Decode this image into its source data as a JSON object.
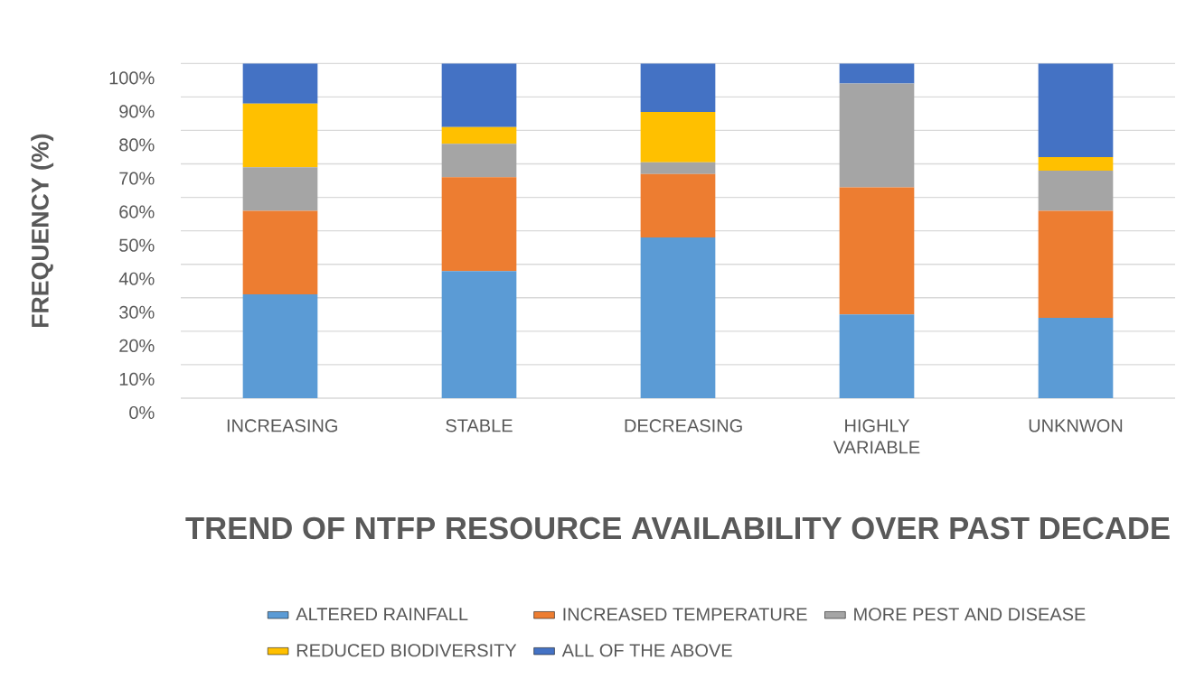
{
  "chart_data": {
    "type": "bar",
    "stacked": true,
    "xlabel": "TREND OF NTFP RESOURCE AVAILABILITY OVER PAST DECADE",
    "ylabel": "FREQUENCY (%)",
    "categories": [
      "INCREASING",
      "STABLE",
      "DECREASING",
      "HIGHLY VARIABLE",
      "UNKNWON"
    ],
    "series": [
      {
        "name": "ALTERED RAINFALL",
        "color": "#5b9bd5",
        "values": [
          31,
          38,
          48,
          25,
          24
        ]
      },
      {
        "name": "INCREASED TEMPERATURE",
        "color": "#ed7d31",
        "values": [
          25,
          28,
          19,
          38,
          32
        ]
      },
      {
        "name": "MORE PEST AND DISEASE",
        "color": "#a5a5a5",
        "values": [
          13,
          10,
          3.5,
          31,
          12
        ]
      },
      {
        "name": "REDUCED BIODIVERSITY",
        "color": "#ffc000",
        "values": [
          19,
          5,
          15,
          0,
          4
        ]
      },
      {
        "name": "ALL OF THE ABOVE",
        "color": "#4472c4",
        "values": [
          12,
          19,
          14.5,
          6,
          28
        ]
      }
    ],
    "ylim": [
      0,
      100
    ],
    "yticks": [
      {
        "value": 0,
        "label": "0%"
      },
      {
        "value": 10,
        "label": "10%"
      },
      {
        "value": 20,
        "label": "20%"
      },
      {
        "value": 30,
        "label": "30%"
      },
      {
        "value": 40,
        "label": "40%"
      },
      {
        "value": 50,
        "label": "50%"
      },
      {
        "value": 60,
        "label": "60%"
      },
      {
        "value": 70,
        "label": "70%"
      },
      {
        "value": 80,
        "label": "80%"
      },
      {
        "value": 90,
        "label": "90%"
      },
      {
        "value": 100,
        "label": "100%"
      }
    ],
    "grid": "y",
    "legend": "bottom"
  }
}
